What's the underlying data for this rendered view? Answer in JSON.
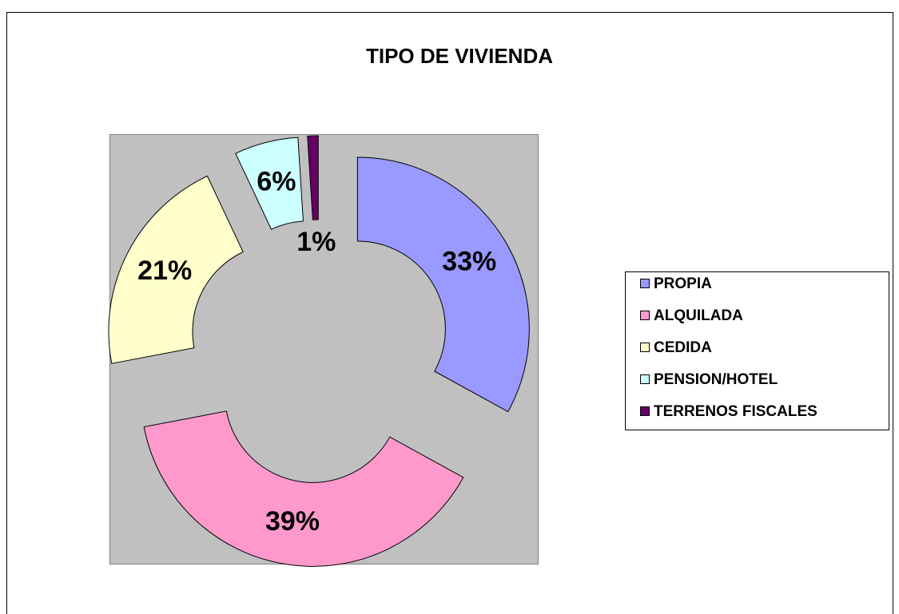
{
  "chart_data": {
    "type": "doughnut",
    "title": "TIPO DE VIVIENDA",
    "categories": [
      "PROPIA",
      "ALQUILADA",
      "CEDIDA",
      "PENSION/HOTEL",
      "TERRENOS FISCALES"
    ],
    "values": [
      33,
      39,
      21,
      6,
      1
    ],
    "value_labels": [
      "33%",
      "39%",
      "21%",
      "6%",
      "1%"
    ],
    "colors": [
      "#9999ff",
      "#ff99cc",
      "#ffffcc",
      "#ccffff",
      "#660066"
    ],
    "legend": "right"
  }
}
